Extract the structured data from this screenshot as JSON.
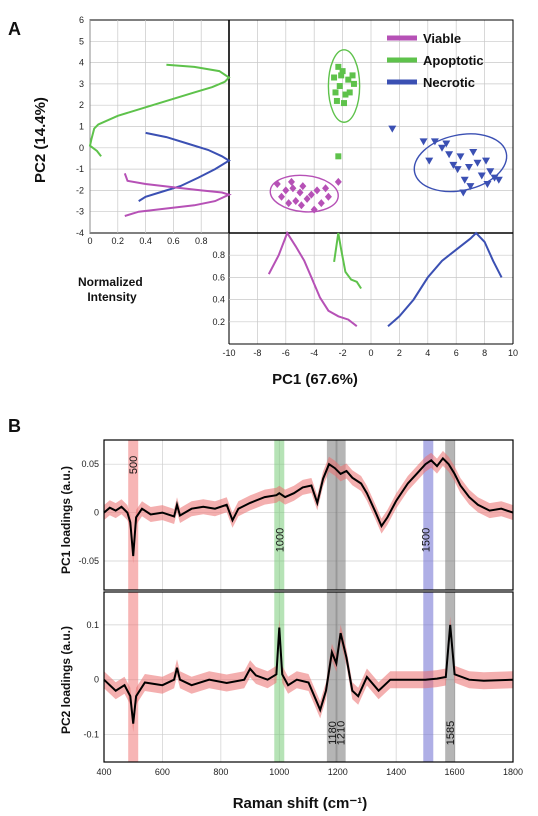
{
  "panel_a_label": "A",
  "panel_b_label": "B",
  "colors": {
    "viable": "#b651b6",
    "apoptotic": "#5ec24b",
    "necrotic": "#3b50b3",
    "loading": "#000000",
    "band": "#ef8c8c"
  },
  "chart_data": [
    {
      "type": "scatter",
      "panel": "A",
      "xlabel": "PC1 (67.6%)",
      "ylabel": "PC2 (14.4%)",
      "xlim": [
        -10,
        10
      ],
      "ylim": [
        -4,
        6
      ],
      "xticks": [
        -10,
        -8,
        -6,
        -4,
        -2,
        0,
        2,
        4,
        6,
        8,
        10
      ],
      "yticks": [
        -4,
        -3,
        -2,
        -1,
        0,
        1,
        2,
        3,
        4,
        5,
        6
      ],
      "grid": true,
      "legend_position": "top-right",
      "series": [
        {
          "name": "Viable",
          "marker": "diamond",
          "points": [
            [
              -6.6,
              -1.7
            ],
            [
              -6.3,
              -2.3
            ],
            [
              -6.0,
              -2.0
            ],
            [
              -5.8,
              -2.6
            ],
            [
              -5.5,
              -1.9
            ],
            [
              -5.3,
              -2.5
            ],
            [
              -5.0,
              -2.1
            ],
            [
              -4.8,
              -1.8
            ],
            [
              -4.5,
              -2.4
            ],
            [
              -4.2,
              -2.2
            ],
            [
              -4.0,
              -2.9
            ],
            [
              -3.8,
              -2.0
            ],
            [
              -3.5,
              -2.6
            ],
            [
              -3.2,
              -1.9
            ],
            [
              -5.6,
              -1.6
            ],
            [
              -4.9,
              -2.7
            ],
            [
              -2.3,
              -1.6
            ],
            [
              -3.0,
              -2.3
            ]
          ],
          "ellipse": {
            "cx": -4.7,
            "cy": -2.15,
            "rx": 2.4,
            "ry": 0.85,
            "angle": 5
          }
        },
        {
          "name": "Apoptotic",
          "marker": "square",
          "points": [
            [
              -2.6,
              3.3
            ],
            [
              -2.3,
              3.8
            ],
            [
              -2.1,
              3.4
            ],
            [
              -1.6,
              3.2
            ],
            [
              -1.3,
              3.4
            ],
            [
              -2.2,
              2.9
            ],
            [
              -1.5,
              2.6
            ],
            [
              -2.4,
              2.2
            ],
            [
              -1.9,
              2.1
            ],
            [
              -1.2,
              3.0
            ],
            [
              -2.0,
              3.6
            ],
            [
              -2.5,
              2.6
            ],
            [
              -1.8,
              2.5
            ],
            [
              -2.3,
              -0.4
            ]
          ],
          "ellipse": {
            "cx": -1.9,
            "cy": 2.9,
            "rx": 1.1,
            "ry": 1.7,
            "angle": 0
          }
        },
        {
          "name": "Necrotic",
          "marker": "triangle-down",
          "points": [
            [
              1.5,
              0.9
            ],
            [
              3.7,
              0.3
            ],
            [
              4.1,
              -0.6
            ],
            [
              4.5,
              0.3
            ],
            [
              5.0,
              0.0
            ],
            [
              5.5,
              -0.3
            ],
            [
              5.8,
              -0.8
            ],
            [
              6.1,
              -1.0
            ],
            [
              6.3,
              -0.4
            ],
            [
              6.6,
              -1.5
            ],
            [
              6.9,
              -0.9
            ],
            [
              7.2,
              -0.2
            ],
            [
              7.5,
              -0.7
            ],
            [
              7.8,
              -1.3
            ],
            [
              8.1,
              -0.6
            ],
            [
              8.4,
              -1.1
            ],
            [
              8.7,
              -1.4
            ],
            [
              9.0,
              -1.5
            ],
            [
              6.5,
              -2.1
            ],
            [
              5.3,
              0.2
            ],
            [
              7.0,
              -1.8
            ],
            [
              8.2,
              -1.7
            ]
          ],
          "ellipse": {
            "cx": 6.3,
            "cy": -0.7,
            "rx": 3.3,
            "ry": 1.3,
            "angle": -12
          }
        }
      ]
    },
    {
      "type": "line",
      "panel": "A-left",
      "description_axis": "Normalized Intensity versus PC2",
      "xticks": [
        0,
        0.2,
        0.4,
        0.6,
        0.8
      ],
      "xlim": [
        0,
        1
      ],
      "series": [
        {
          "name": "Apoptotic",
          "points": [
            [
              0.08,
              -0.4
            ],
            [
              0.05,
              -0.15
            ],
            [
              0.0,
              0.1
            ],
            [
              0.01,
              0.4
            ],
            [
              0.03,
              0.9
            ],
            [
              0.06,
              1.1
            ],
            [
              0.2,
              1.5
            ],
            [
              0.4,
              1.9
            ],
            [
              0.6,
              2.3
            ],
            [
              0.75,
              2.6
            ],
            [
              0.88,
              2.85
            ],
            [
              0.97,
              3.1
            ],
            [
              1.0,
              3.3
            ],
            [
              0.93,
              3.6
            ],
            [
              0.75,
              3.8
            ],
            [
              0.55,
              3.9
            ]
          ]
        },
        {
          "name": "Necrotic",
          "points": [
            [
              0.4,
              0.7
            ],
            [
              0.55,
              0.5
            ],
            [
              0.7,
              0.2
            ],
            [
              0.85,
              -0.1
            ],
            [
              0.95,
              -0.4
            ],
            [
              1.0,
              -0.6
            ],
            [
              0.9,
              -1.0
            ],
            [
              0.78,
              -1.4
            ],
            [
              0.65,
              -1.8
            ],
            [
              0.5,
              -2.1
            ],
            [
              0.4,
              -2.3
            ],
            [
              0.35,
              -2.5
            ]
          ]
        },
        {
          "name": "Viable",
          "points": [
            [
              0.25,
              -1.2
            ],
            [
              0.27,
              -1.55
            ],
            [
              0.4,
              -1.7
            ],
            [
              0.6,
              -1.85
            ],
            [
              0.8,
              -2.0
            ],
            [
              0.95,
              -2.1
            ],
            [
              1.0,
              -2.2
            ],
            [
              0.9,
              -2.5
            ],
            [
              0.75,
              -2.7
            ],
            [
              0.55,
              -2.85
            ],
            [
              0.35,
              -3.0
            ],
            [
              0.25,
              -3.2
            ]
          ]
        }
      ]
    },
    {
      "type": "line",
      "panel": "A-bottom",
      "ylabel": "Normalized Intensity",
      "yticks": [
        0.2,
        0.4,
        0.6,
        0.8
      ],
      "ylim": [
        0,
        1
      ],
      "series": [
        {
          "name": "Viable",
          "points": [
            [
              -7.2,
              0.63
            ],
            [
              -6.5,
              0.8
            ],
            [
              -5.9,
              1.0
            ],
            [
              -5.3,
              0.88
            ],
            [
              -4.7,
              0.75
            ],
            [
              -4.2,
              0.6
            ],
            [
              -3.6,
              0.42
            ],
            [
              -3.0,
              0.3
            ],
            [
              -2.3,
              0.25
            ],
            [
              -1.6,
              0.22
            ],
            [
              -1.0,
              0.16
            ]
          ]
        },
        {
          "name": "Apoptotic",
          "points": [
            [
              -2.6,
              0.74
            ],
            [
              -2.3,
              1.0
            ],
            [
              -2.1,
              0.85
            ],
            [
              -1.8,
              0.65
            ],
            [
              -1.4,
              0.58
            ],
            [
              -1.0,
              0.56
            ],
            [
              -0.7,
              0.5
            ]
          ]
        },
        {
          "name": "Necrotic",
          "points": [
            [
              1.2,
              0.16
            ],
            [
              2.0,
              0.25
            ],
            [
              3.0,
              0.4
            ],
            [
              4.0,
              0.6
            ],
            [
              5.0,
              0.75
            ],
            [
              6.0,
              0.85
            ],
            [
              7.0,
              0.95
            ],
            [
              7.4,
              1.0
            ],
            [
              8.0,
              0.92
            ],
            [
              8.6,
              0.75
            ],
            [
              9.2,
              0.6
            ]
          ]
        }
      ]
    },
    {
      "type": "line",
      "panel": "B-top",
      "ylabel": "PC1 loadings (a.u.)",
      "yticks": [
        -0.05,
        0,
        0.05
      ],
      "ylim": [
        -0.08,
        0.075
      ],
      "band_labels": [
        "500",
        "1000",
        "1500"
      ],
      "band_label_positions": [
        500,
        1000,
        1500
      ],
      "points": [
        [
          400,
          0.0
        ],
        [
          420,
          0.005
        ],
        [
          440,
          0.002
        ],
        [
          460,
          0.006
        ],
        [
          480,
          0.0
        ],
        [
          490,
          -0.01
        ],
        [
          500,
          -0.045
        ],
        [
          510,
          -0.005
        ],
        [
          530,
          0.004
        ],
        [
          560,
          -0.002
        ],
        [
          600,
          0.0
        ],
        [
          640,
          -0.004
        ],
        [
          650,
          0.008
        ],
        [
          660,
          -0.003
        ],
        [
          700,
          0.004
        ],
        [
          740,
          0.006
        ],
        [
          780,
          0.004
        ],
        [
          820,
          0.008
        ],
        [
          840,
          -0.008
        ],
        [
          860,
          0.004
        ],
        [
          900,
          0.01
        ],
        [
          950,
          0.016
        ],
        [
          990,
          0.018
        ],
        [
          1000,
          0.02
        ],
        [
          1020,
          0.016
        ],
        [
          1050,
          0.02
        ],
        [
          1080,
          0.026
        ],
        [
          1110,
          0.028
        ],
        [
          1130,
          0.01
        ],
        [
          1150,
          0.035
        ],
        [
          1170,
          0.05
        ],
        [
          1190,
          0.046
        ],
        [
          1210,
          0.04
        ],
        [
          1230,
          0.043
        ],
        [
          1250,
          0.036
        ],
        [
          1280,
          0.03
        ],
        [
          1300,
          0.02
        ],
        [
          1330,
          0.0
        ],
        [
          1350,
          -0.014
        ],
        [
          1370,
          -0.005
        ],
        [
          1400,
          0.012
        ],
        [
          1440,
          0.03
        ],
        [
          1470,
          0.04
        ],
        [
          1500,
          0.05
        ],
        [
          1520,
          0.054
        ],
        [
          1540,
          0.048
        ],
        [
          1560,
          0.056
        ],
        [
          1580,
          0.05
        ],
        [
          1600,
          0.04
        ],
        [
          1620,
          0.028
        ],
        [
          1650,
          0.016
        ],
        [
          1680,
          0.008
        ],
        [
          1720,
          0.002
        ],
        [
          1760,
          0.004
        ],
        [
          1800,
          0.0
        ]
      ]
    },
    {
      "type": "line",
      "panel": "B-bottom",
      "xlabel": "Raman shift (cm⁻¹)",
      "ylabel": "PC2 loadings (a.u.)",
      "xlim": [
        400,
        1800
      ],
      "xticks": [
        400,
        600,
        800,
        1000,
        1200,
        1400,
        1600,
        1800
      ],
      "yticks": [
        -0.1,
        0,
        0.1
      ],
      "ylim": [
        -0.15,
        0.16
      ],
      "band_labels": [
        "1180",
        "1210",
        "1585"
      ],
      "band_label_positions": [
        1180,
        1210,
        1585
      ],
      "band_highlights": [
        {
          "x": 500,
          "color": "red"
        },
        {
          "x": 1000,
          "color": "green"
        },
        {
          "x": 1180,
          "color": "gray"
        },
        {
          "x": 1210,
          "color": "gray"
        },
        {
          "x": 1510,
          "color": "blue"
        },
        {
          "x": 1585,
          "color": "gray"
        }
      ],
      "points": [
        [
          400,
          0.0
        ],
        [
          440,
          -0.02
        ],
        [
          470,
          -0.01
        ],
        [
          490,
          -0.03
        ],
        [
          500,
          -0.08
        ],
        [
          510,
          -0.03
        ],
        [
          540,
          -0.005
        ],
        [
          600,
          -0.01
        ],
        [
          640,
          0.0
        ],
        [
          650,
          0.022
        ],
        [
          660,
          0.0
        ],
        [
          700,
          -0.01
        ],
        [
          760,
          0.0
        ],
        [
          820,
          -0.006
        ],
        [
          880,
          0.0
        ],
        [
          900,
          0.02
        ],
        [
          920,
          0.008
        ],
        [
          960,
          0.0
        ],
        [
          990,
          0.01
        ],
        [
          1000,
          0.095
        ],
        [
          1010,
          0.01
        ],
        [
          1030,
          -0.01
        ],
        [
          1060,
          0.0
        ],
        [
          1100,
          -0.005
        ],
        [
          1140,
          -0.055
        ],
        [
          1160,
          -0.02
        ],
        [
          1180,
          0.05
        ],
        [
          1195,
          0.03
        ],
        [
          1210,
          0.085
        ],
        [
          1230,
          0.04
        ],
        [
          1250,
          -0.02
        ],
        [
          1270,
          -0.03
        ],
        [
          1300,
          0.005
        ],
        [
          1340,
          -0.02
        ],
        [
          1380,
          0.0
        ],
        [
          1420,
          0.0
        ],
        [
          1470,
          0.0
        ],
        [
          1500,
          0.0
        ],
        [
          1540,
          0.002
        ],
        [
          1570,
          0.005
        ],
        [
          1585,
          0.1
        ],
        [
          1600,
          0.01
        ],
        [
          1650,
          0.0
        ],
        [
          1700,
          -0.002
        ],
        [
          1800,
          0.0
        ]
      ]
    }
  ]
}
